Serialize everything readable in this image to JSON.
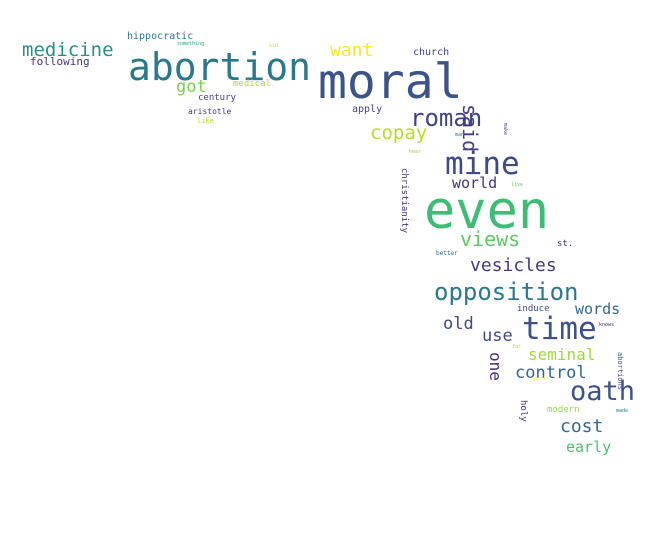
{
  "word_cloud": {
    "words": [
      {
        "text": "moral",
        "color": "#3b528b"
      },
      {
        "text": "even",
        "color": "#3dbc74"
      },
      {
        "text": "abortion",
        "color": "#2a788e"
      },
      {
        "text": "mine",
        "color": "#3e4a89"
      },
      {
        "text": "time",
        "color": "#3b528b"
      },
      {
        "text": "oath",
        "color": "#3b528b"
      },
      {
        "text": "opposition",
        "color": "#2a788e"
      },
      {
        "text": "roman",
        "color": "#414487"
      },
      {
        "text": "views",
        "color": "#5ec962"
      },
      {
        "text": "medicine",
        "color": "#21918c"
      },
      {
        "text": "copay",
        "color": "#b5de2b"
      },
      {
        "text": "vesicles",
        "color": "#443983"
      },
      {
        "text": "want",
        "color": "#fde725"
      },
      {
        "text": "said",
        "color": "#443983"
      },
      {
        "text": "got",
        "color": "#7ad151"
      },
      {
        "text": "world",
        "color": "#46327e"
      },
      {
        "text": "cost",
        "color": "#31688e"
      },
      {
        "text": "control",
        "color": "#31688e"
      },
      {
        "text": "seminal",
        "color": "#a0da39"
      },
      {
        "text": "use",
        "color": "#3e4a89"
      },
      {
        "text": "old",
        "color": "#404688"
      },
      {
        "text": "words",
        "color": "#31688e"
      },
      {
        "text": "one",
        "color": "#472d7b"
      },
      {
        "text": "early",
        "color": "#4ac16d"
      },
      {
        "text": "following",
        "color": "#46327e"
      },
      {
        "text": "hippocratic",
        "color": "#2a788e"
      },
      {
        "text": "church",
        "color": "#404688"
      },
      {
        "text": "christianity",
        "color": "#46327e"
      },
      {
        "text": "apply",
        "color": "#414487"
      },
      {
        "text": "medical",
        "color": "#addc30"
      },
      {
        "text": "century",
        "color": "#443983"
      },
      {
        "text": "aristotle",
        "color": "#46327e"
      },
      {
        "text": "induce",
        "color": "#3e4a89"
      },
      {
        "text": "st.",
        "color": "#46327e"
      },
      {
        "text": "modern",
        "color": "#9bd93c"
      },
      {
        "text": "holy",
        "color": "#472d7b"
      },
      {
        "text": "abortions",
        "color": "#3b528b"
      },
      {
        "text": "like",
        "color": "#c8e020"
      },
      {
        "text": "better",
        "color": "#2a788e"
      },
      {
        "text": "something",
        "color": "#1fa088"
      },
      {
        "text": "kid",
        "color": "#e2e418"
      },
      {
        "text": "man",
        "color": "#2a788e"
      },
      {
        "text": "make",
        "color": "#3e4a89"
      },
      {
        "text": "hear",
        "color": "#8fd744"
      },
      {
        "text": "live",
        "color": "#5ec962"
      },
      {
        "text": "knows",
        "color": "#472d7b"
      },
      {
        "text": "far",
        "color": "#bddf26"
      },
      {
        "text": "post",
        "color": "#fde725"
      },
      {
        "text": "made",
        "color": "#2a788e"
      }
    ]
  }
}
